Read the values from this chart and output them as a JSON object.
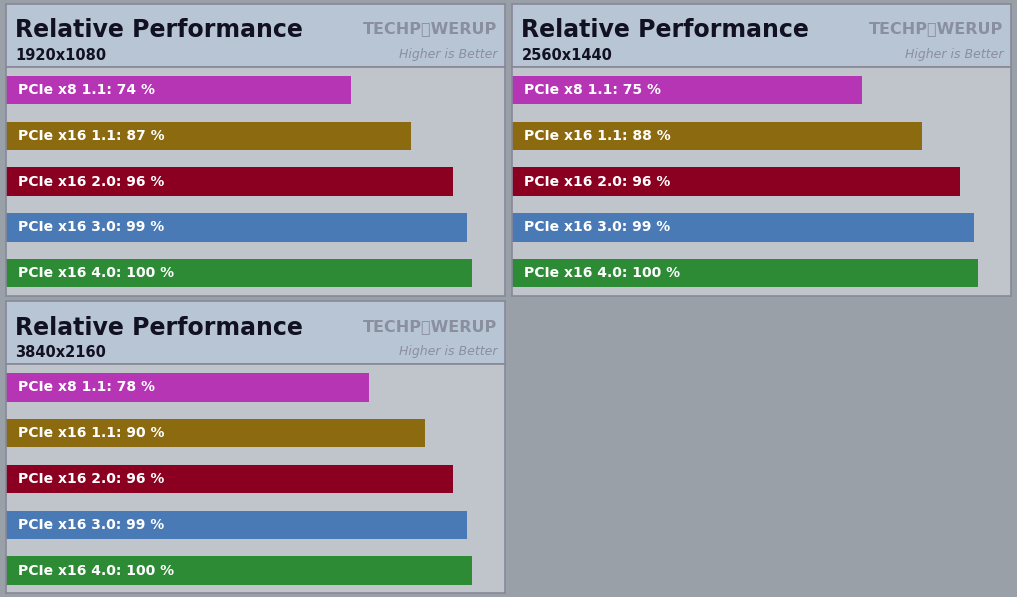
{
  "panels": [
    {
      "title": "Relative Performance",
      "subtitle": "1920x1080",
      "bars": [
        {
          "label": "PCIe x8 1.1: 74 %",
          "value": 74,
          "color": "#b535b5"
        },
        {
          "label": "PCIe x16 1.1: 87 %",
          "value": 87,
          "color": "#8b6a10"
        },
        {
          "label": "PCIe x16 2.0: 96 %",
          "value": 96,
          "color": "#8b0020"
        },
        {
          "label": "PCIe x16 3.0: 99 %",
          "value": 99,
          "color": "#4a7ab5"
        },
        {
          "label": "PCIe x16 4.0: 100 %",
          "value": 100,
          "color": "#2e8b35"
        }
      ]
    },
    {
      "title": "Relative Performance",
      "subtitle": "2560x1440",
      "bars": [
        {
          "label": "PCIe x8 1.1: 75 %",
          "value": 75,
          "color": "#b535b5"
        },
        {
          "label": "PCIe x16 1.1: 88 %",
          "value": 88,
          "color": "#8b6a10"
        },
        {
          "label": "PCIe x16 2.0: 96 %",
          "value": 96,
          "color": "#8b0020"
        },
        {
          "label": "PCIe x16 3.0: 99 %",
          "value": 99,
          "color": "#4a7ab5"
        },
        {
          "label": "PCIe x16 4.0: 100 %",
          "value": 100,
          "color": "#2e8b35"
        }
      ]
    },
    {
      "title": "Relative Performance",
      "subtitle": "3840x2160",
      "bars": [
        {
          "label": "PCIe x8 1.1: 78 %",
          "value": 78,
          "color": "#b535b5"
        },
        {
          "label": "PCIe x16 1.1: 90 %",
          "value": 90,
          "color": "#8b6a10"
        },
        {
          "label": "PCIe x16 2.0: 96 %",
          "value": 96,
          "color": "#8b0020"
        },
        {
          "label": "PCIe x16 3.0: 99 %",
          "value": 99,
          "color": "#4a7ab5"
        },
        {
          "label": "PCIe x16 4.0: 100 %",
          "value": 100,
          "color": "#2e8b35"
        }
      ]
    }
  ],
  "header_bg": "#b8c5d5",
  "body_bg": "#c0c5cc",
  "outer_bg": "#9aa0a8",
  "title_color": "#111122",
  "subtitle_color": "#111122",
  "watermark_text": "TECHPⓎWERUP",
  "watermark_subtext": "Higher is Better",
  "bar_text_color": "#ffffff",
  "bar_height": 0.62,
  "xlim": [
    0,
    107
  ],
  "panel_border_color": "#888899"
}
